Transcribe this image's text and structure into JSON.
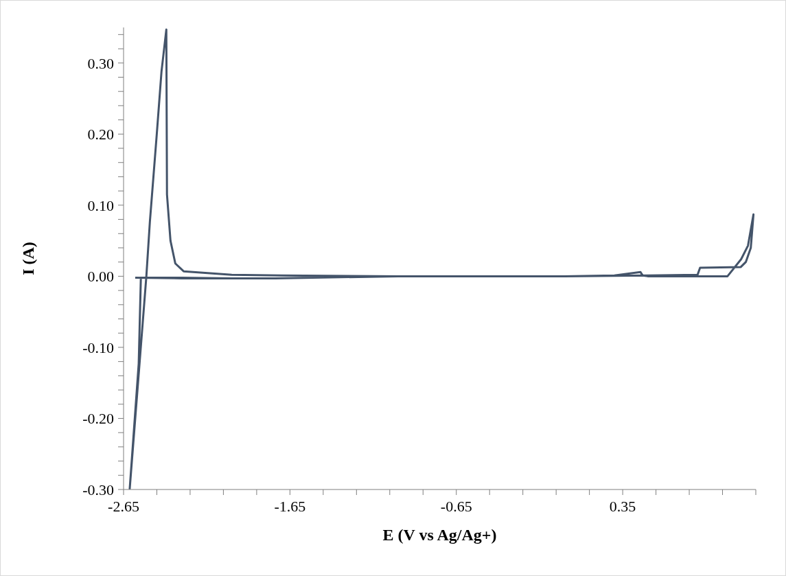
{
  "chart_data": {
    "type": "line",
    "xlabel": "E (V vs Ag/Ag+)",
    "ylabel": "I (A)",
    "series": [
      {
        "color": "#44546a",
        "x": [
          -1.74,
          -2.0,
          -2.3,
          -2.546,
          -2.559,
          -2.613,
          -2.513,
          -2.492,
          -2.451,
          -2.422,
          -2.393,
          -2.389,
          -2.368,
          -2.339,
          -2.289,
          -2.0,
          -1.7,
          -1.0,
          0.0,
          0.3,
          0.457,
          0.47,
          0.5,
          0.786,
          0.98,
          1.062,
          1.103,
          1.136,
          1.12,
          1.09,
          1.06,
          0.815,
          0.8,
          0.5,
          0.0,
          -1.0,
          -1.74,
          -2.3,
          -2.58
        ],
        "values": [
          -0.003,
          -0.003,
          -0.002,
          -0.002,
          -0.123,
          -0.299,
          0.0,
          0.076,
          0.198,
          0.288,
          0.347,
          0.115,
          0.05,
          0.018,
          0.007,
          0.002,
          0.001,
          0.0,
          0.0,
          0.001,
          0.006,
          0.001,
          0.0,
          0.0,
          0.0,
          0.024,
          0.043,
          0.087,
          0.04,
          0.02,
          0.013,
          0.012,
          0.002,
          0.001,
          0.0,
          0.0,
          -0.003,
          -0.003,
          -0.002
        ]
      }
    ],
    "xlim": [
      -2.65,
      1.15
    ],
    "xticks": [
      -2.65,
      {
        "value": -2.45,
        "label": null
      },
      {
        "value": -2.25,
        "label": null
      },
      {
        "value": -2.05,
        "label": null
      },
      {
        "value": -1.85,
        "label": null
      },
      -1.65,
      {
        "value": -1.45,
        "label": null
      },
      {
        "value": -1.25,
        "label": null
      },
      {
        "value": -1.05,
        "label": null
      },
      {
        "value": -0.85,
        "label": null
      },
      -0.65,
      {
        "value": -0.45,
        "label": null
      },
      {
        "value": -0.25,
        "label": null
      },
      {
        "value": -0.05,
        "label": null
      },
      {
        "value": 0.15,
        "label": null
      },
      0.35,
      {
        "value": 0.55,
        "label": null
      },
      {
        "value": 0.75,
        "label": null
      },
      {
        "value": 0.95,
        "label": null
      },
      {
        "value": 1.15,
        "label": null
      }
    ],
    "ylim": [
      -0.3,
      0.35
    ],
    "yticks": [
      {
        "value": -0.3,
        "label": "-0.30"
      },
      {
        "value": -0.28,
        "label": null
      },
      {
        "value": -0.26,
        "label": null
      },
      {
        "value": -0.24,
        "label": null
      },
      {
        "value": -0.22,
        "label": null
      },
      {
        "value": -0.2,
        "label": "-0.20"
      },
      {
        "value": -0.18,
        "label": null
      },
      {
        "value": -0.16,
        "label": null
      },
      {
        "value": -0.14,
        "label": null
      },
      {
        "value": -0.12,
        "label": null
      },
      {
        "value": -0.1,
        "label": "-0.10"
      },
      {
        "value": -0.08,
        "label": null
      },
      {
        "value": -0.06,
        "label": null
      },
      {
        "value": -0.04,
        "label": null
      },
      {
        "value": -0.02,
        "label": null
      },
      {
        "value": 0,
        "label": "0.00"
      },
      {
        "value": 0.02,
        "label": null
      },
      {
        "value": 0.04,
        "label": null
      },
      {
        "value": 0.06,
        "label": null
      },
      {
        "value": 0.08,
        "label": null
      },
      {
        "value": 0.1,
        "label": "0.10"
      },
      {
        "value": 0.12,
        "label": null
      },
      {
        "value": 0.14,
        "label": null
      },
      {
        "value": 0.16,
        "label": null
      },
      {
        "value": 0.18,
        "label": null
      },
      {
        "value": 0.2,
        "label": "0.20"
      },
      {
        "value": 0.22,
        "label": null
      },
      {
        "value": 0.24,
        "label": null
      },
      {
        "value": 0.26,
        "label": null
      },
      {
        "value": 0.28,
        "label": null
      },
      {
        "value": 0.3,
        "label": "0.30"
      },
      {
        "value": 0.32,
        "label": null
      },
      {
        "value": 0.34,
        "label": null
      }
    ],
    "grid": false,
    "legend": false,
    "marker": "none",
    "line_style": "solid"
  }
}
